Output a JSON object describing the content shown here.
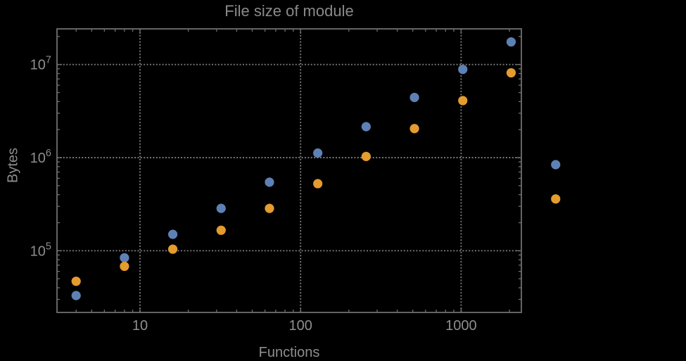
{
  "chart_data": {
    "type": "scatter",
    "title": "File size of module",
    "xlabel": "Functions",
    "ylabel": "Bytes",
    "x_scale": "log10",
    "y_scale": "log10",
    "xlim": [
      3,
      2400
    ],
    "ylim": [
      21500,
      24000000
    ],
    "grid": "dotted lines at major ticks",
    "legend": "none",
    "x_ticks": {
      "values": [
        10,
        100,
        1000
      ],
      "labels": [
        "10",
        "100",
        "1000"
      ]
    },
    "y_ticks": {
      "values": [
        100000,
        1000000,
        10000000
      ],
      "labels": [
        {
          "base": "10",
          "exp": "5"
        },
        {
          "base": "10",
          "exp": "6"
        },
        {
          "base": "10",
          "exp": "7"
        }
      ]
    },
    "series": [
      {
        "name": "series-blue",
        "color": "#5e81b5",
        "marker": "circle",
        "points": [
          [
            4,
            33000
          ],
          [
            8,
            84000
          ],
          [
            16,
            150000
          ],
          [
            32,
            285000
          ],
          [
            64,
            545000
          ],
          [
            128,
            1120000
          ],
          [
            256,
            2150000
          ],
          [
            512,
            4430000
          ],
          [
            1024,
            8870000
          ],
          [
            2048,
            17500000
          ],
          [
            3880,
            840000
          ]
        ]
      },
      {
        "name": "series-orange",
        "color": "#e49c2e",
        "marker": "circle",
        "points": [
          [
            4,
            47000
          ],
          [
            8,
            68000
          ],
          [
            16,
            104000
          ],
          [
            32,
            166000
          ],
          [
            64,
            285000
          ],
          [
            128,
            525000
          ],
          [
            256,
            1030000
          ],
          [
            512,
            2050000
          ],
          [
            1024,
            4100000
          ],
          [
            2048,
            8150000
          ],
          [
            3880,
            360000
          ]
        ]
      }
    ]
  },
  "colors": {
    "background": "#000000",
    "frame": "#6f6f6f",
    "gridline": "#787878",
    "tick_label": "#8e8e8e",
    "title_text": "#8a8a8a"
  }
}
